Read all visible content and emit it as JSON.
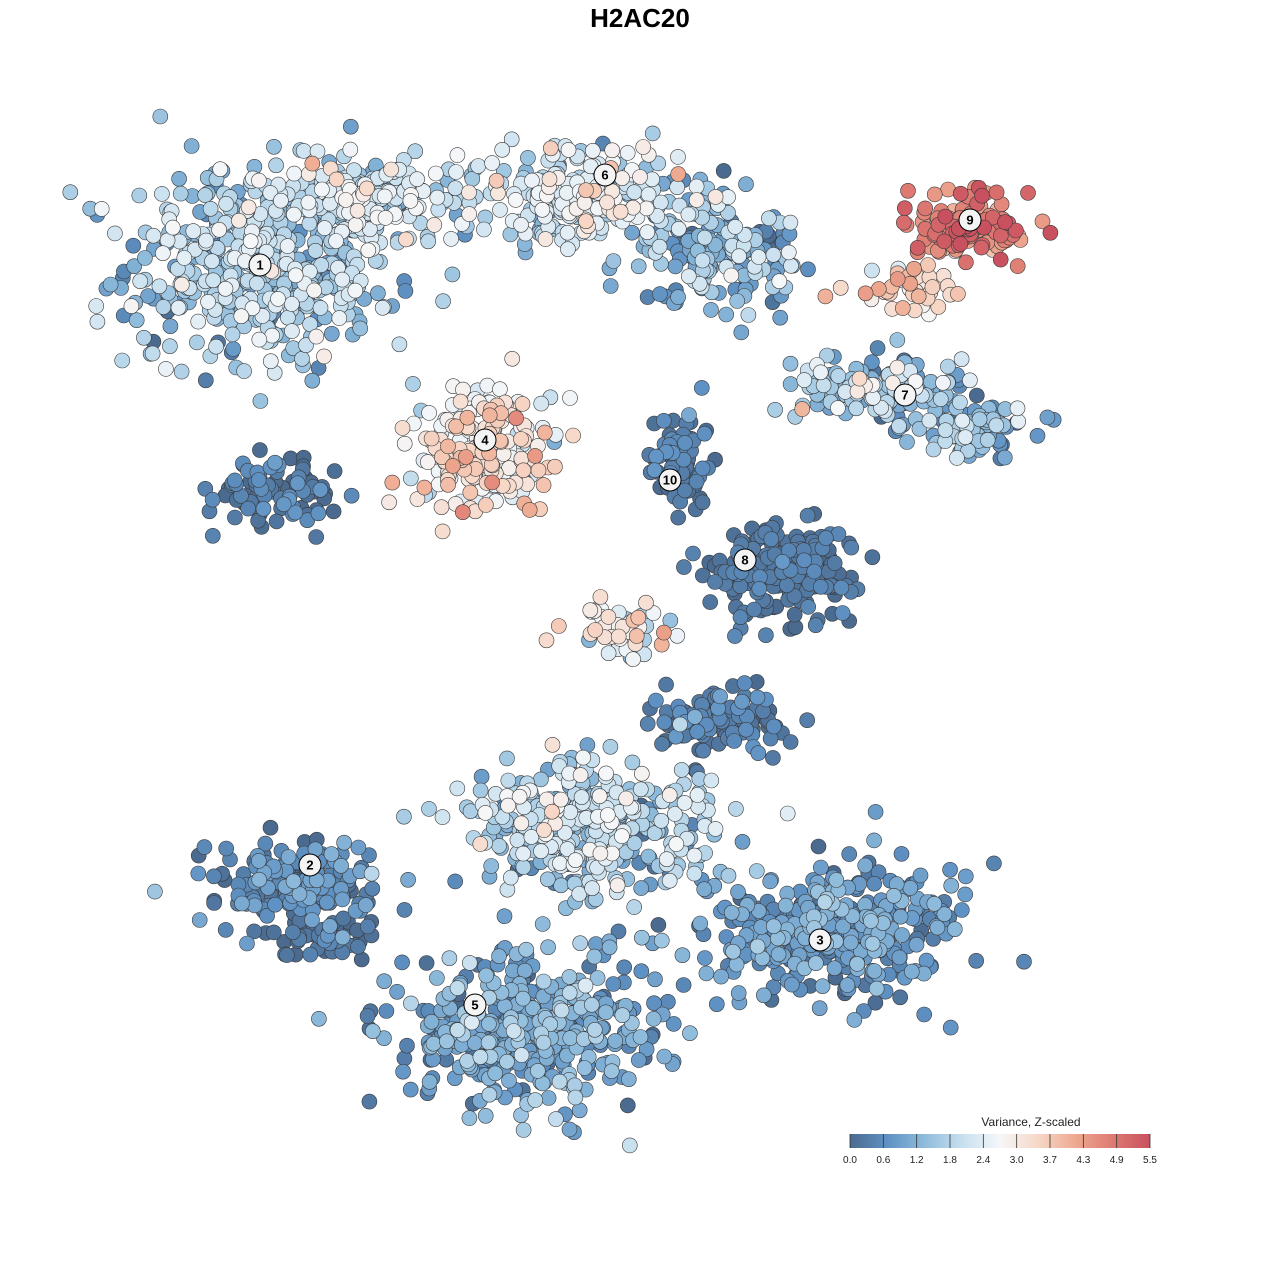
{
  "chart_data": {
    "type": "scatter",
    "title": "H2AC20",
    "xlabel": "",
    "ylabel": "",
    "grid": false,
    "legend": {
      "title": "Variance, Z-scaled",
      "placement": "bottom-right",
      "range": [
        0.0,
        5.5
      ],
      "ticks": [
        "0.0",
        "0.6",
        "1.2",
        "1.8",
        "2.4",
        "3.0",
        "3.7",
        "4.3",
        "4.9",
        "5.5"
      ],
      "colors": [
        "#4a6a8f",
        "#5f92c4",
        "#8fbcdc",
        "#c8e0ef",
        "#f5f7f9",
        "#f7d8c8",
        "#eeaa90",
        "#de7a72",
        "#c9505f"
      ]
    },
    "clusters": [
      {
        "id": "1",
        "center": [
          -7.6,
          7.5
        ],
        "mean_value": 1.7
      },
      {
        "id": "2",
        "center": [
          -6.6,
          -4.5
        ],
        "mean_value": 0.5
      },
      {
        "id": "3",
        "center": [
          3.6,
          -6.0
        ],
        "mean_value": 0.9
      },
      {
        "id": "4",
        "center": [
          -3.1,
          4.0
        ],
        "mean_value": 2.7
      },
      {
        "id": "5",
        "center": [
          -3.3,
          -7.3
        ],
        "mean_value": 1.1
      },
      {
        "id": "6",
        "center": [
          -0.7,
          9.3
        ],
        "mean_value": 1.6
      },
      {
        "id": "7",
        "center": [
          5.3,
          4.9
        ],
        "mean_value": 1.3
      },
      {
        "id": "8",
        "center": [
          2.1,
          1.6
        ],
        "mean_value": 0.4
      },
      {
        "id": "9",
        "center": [
          6.6,
          8.4
        ],
        "mean_value": 4.7
      },
      {
        "id": "10",
        "center": [
          0.6,
          3.2
        ],
        "mean_value": 0.4
      }
    ]
  }
}
